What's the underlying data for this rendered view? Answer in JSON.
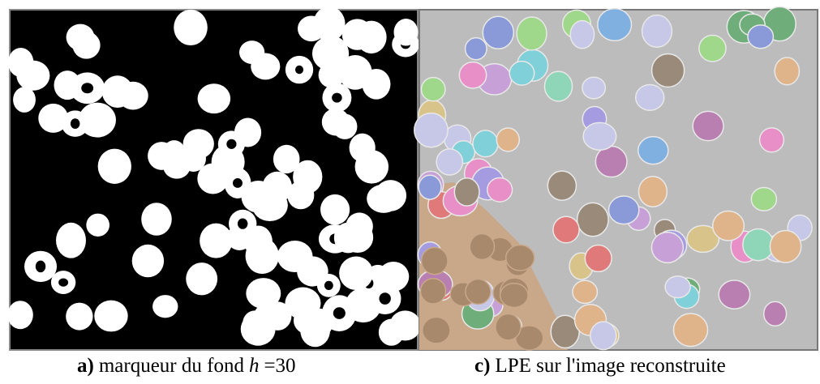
{
  "panels": [
    {
      "label": "a)",
      "caption": "marqueur du fond",
      "symbol": "h",
      "value": "=30"
    },
    {
      "label": "c)",
      "caption": "LPE sur l'image reconstruite"
    }
  ]
}
